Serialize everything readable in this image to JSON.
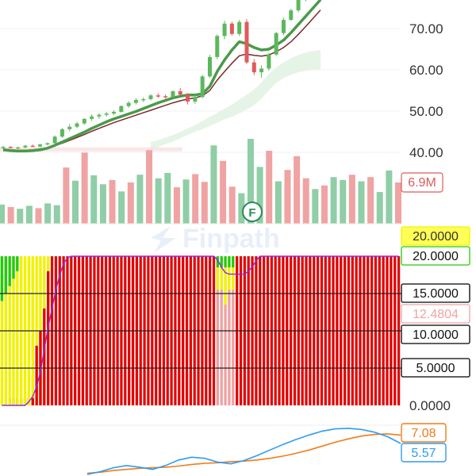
{
  "watermark": "Finpath",
  "corner_marker": "F",
  "colors": {
    "up": "#5cb85c",
    "down": "#e05a5a",
    "vol_up": "#8fcea6",
    "vol_down": "#f0a3a3",
    "cloud": "#e3f3e6",
    "ma_fast": "#4a9a4a",
    "ma_slow": "#7a2a2a",
    "ind_red": "#e30000",
    "ind_yellow": "#f2f200",
    "ind_green": "#22cc00",
    "ind_line": "#8a2be2",
    "macd_blue": "#2e9cf0",
    "macd_orange": "#f07c1a"
  },
  "chart_data": [
    {
      "type": "candlestick",
      "y_ticks": [
        "70.00",
        "60.00",
        "50.00",
        "40.00"
      ],
      "ylim": [
        36,
        77
      ],
      "candles": [
        [
          41.2,
          41.6,
          40.9,
          41.3
        ],
        [
          41.3,
          41.5,
          41.0,
          41.1
        ],
        [
          41.1,
          41.4,
          40.8,
          41.2
        ],
        [
          41.2,
          41.8,
          41.0,
          41.6
        ],
        [
          41.6,
          41.9,
          41.3,
          41.4
        ],
        [
          41.4,
          42.1,
          41.2,
          41.9
        ],
        [
          41.9,
          42.4,
          41.7,
          42.2
        ],
        [
          42.2,
          44.1,
          42.0,
          43.8
        ],
        [
          43.8,
          45.9,
          43.5,
          45.6
        ],
        [
          45.6,
          46.8,
          45.1,
          46.2
        ],
        [
          46.2,
          47.4,
          45.8,
          47.0
        ],
        [
          47.0,
          48.3,
          46.7,
          48.1
        ],
        [
          48.1,
          49.2,
          47.6,
          48.7
        ],
        [
          48.7,
          49.5,
          48.1,
          49.1
        ],
        [
          49.1,
          49.8,
          48.6,
          49.4
        ],
        [
          49.4,
          50.2,
          49.0,
          49.8
        ],
        [
          49.8,
          51.4,
          49.6,
          51.2
        ],
        [
          51.2,
          52.4,
          50.8,
          52.0
        ],
        [
          52.0,
          53.1,
          51.6,
          52.7
        ],
        [
          52.7,
          53.3,
          52.2,
          52.9
        ],
        [
          52.9,
          54.1,
          52.6,
          53.8
        ],
        [
          53.8,
          54.3,
          53.2,
          53.6
        ],
        [
          53.6,
          54.0,
          53.0,
          53.4
        ],
        [
          53.4,
          55.0,
          53.2,
          54.8
        ],
        [
          54.8,
          55.6,
          53.7,
          54.0
        ],
        [
          54.0,
          54.4,
          51.6,
          52.3
        ],
        [
          52.3,
          53.9,
          51.8,
          53.4
        ],
        [
          53.4,
          58.8,
          53.1,
          58.4
        ],
        [
          58.4,
          63.6,
          58.0,
          63.1
        ],
        [
          63.1,
          68.6,
          62.6,
          68.2
        ],
        [
          68.2,
          71.9,
          67.4,
          71.2
        ],
        [
          71.2,
          71.7,
          68.3,
          68.7
        ],
        [
          68.7,
          72.1,
          68.2,
          71.6
        ],
        [
          71.6,
          72.3,
          61.4,
          61.8
        ],
        [
          61.8,
          62.6,
          58.7,
          59.4
        ],
        [
          59.4,
          61.1,
          58.1,
          60.3
        ],
        [
          60.3,
          64.1,
          59.8,
          63.7
        ],
        [
          63.7,
          69.2,
          63.4,
          68.9
        ],
        [
          68.9,
          72.6,
          68.4,
          72.1
        ],
        [
          72.1,
          74.8,
          71.8,
          74.4
        ],
        [
          74.4,
          77.6,
          74.0,
          77.1
        ],
        [
          77.1,
          78.6,
          76.6,
          78.1
        ],
        [
          78.1,
          79.2,
          77.6,
          78.7
        ],
        [
          78.7,
          79.6,
          78.2,
          79.3
        ]
      ],
      "ma_fast": [
        40.6,
        40.4,
        40.3,
        40.3,
        40.4,
        40.6,
        41.0,
        41.7,
        42.5,
        43.3,
        44.1,
        44.9,
        45.8,
        46.6,
        47.4,
        48.1,
        48.7,
        49.3,
        49.9,
        50.6,
        51.3,
        52.0,
        52.6,
        53.2,
        53.6,
        53.9,
        53.9,
        54.2,
        56.0,
        59.6,
        62.4,
        64.8,
        66.8,
        66.3,
        65.4,
        64.8,
        65.0,
        66.0,
        67.2,
        69.0,
        71.0,
        73.0,
        75.0,
        77.0
      ],
      "ma_slow": [
        40.8,
        40.6,
        40.5,
        40.5,
        40.6,
        40.8,
        41.1,
        41.6,
        42.2,
        42.9,
        43.6,
        44.3,
        45.1,
        45.8,
        46.5,
        47.2,
        47.8,
        48.4,
        49.0,
        49.6,
        50.2,
        50.8,
        51.4,
        52.0,
        52.5,
        52.9,
        53.2,
        53.7,
        55.0,
        57.5,
        59.6,
        61.6,
        63.4,
        63.8,
        63.5,
        63.3,
        63.6,
        64.4,
        65.4,
        66.8,
        68.6,
        70.5,
        72.5,
        74.5
      ],
      "cloud_top": [
        null,
        null,
        null,
        null,
        null,
        null,
        null,
        null,
        null,
        null,
        null,
        null,
        null,
        null,
        null,
        null,
        null,
        null,
        null,
        null,
        42.5,
        43.0,
        43.6,
        44.2,
        45.0,
        45.8,
        46.6,
        47.6,
        48.6,
        49.6,
        50.6,
        51.6,
        52.8,
        54.0,
        55.2,
        57.0,
        59.0,
        60.6,
        61.8,
        62.8,
        63.6,
        64.2,
        64.6,
        64.8
      ],
      "cloud_bottom": [
        null,
        null,
        null,
        null,
        null,
        null,
        null,
        null,
        null,
        null,
        null,
        null,
        null,
        null,
        null,
        null,
        null,
        null,
        null,
        null,
        40.5,
        41.2,
        42.0,
        42.6,
        43.4,
        44.2,
        45.0,
        45.6,
        46.4,
        47.2,
        48.0,
        48.6,
        49.4,
        50.4,
        51.4,
        53.0,
        55.0,
        56.8,
        58.0,
        58.8,
        59.4,
        59.8,
        60.0,
        60.2
      ]
    },
    {
      "type": "bar",
      "name": "volume",
      "last_value_label": "6.9M",
      "values": [
        3.2,
        2.8,
        2.5,
        3.0,
        2.6,
        3.4,
        3.1,
        9.4,
        7.2,
        11.9,
        8.1,
        6.6,
        7.3,
        5.4,
        6.9,
        8.2,
        12.3,
        7.6,
        8.5,
        6.1,
        7.4,
        8.3,
        7.0,
        13.1,
        10.5,
        6.2,
        5.1,
        14.2,
        9.5,
        12.2,
        7.1,
        9.0,
        11.3,
        7.6,
        5.8,
        6.4,
        7.8,
        7.3,
        8.2,
        7.1,
        7.8,
        5.3,
        8.9,
        6.9
      ],
      "up": [
        true,
        false,
        true,
        true,
        false,
        true,
        true,
        false,
        true,
        false,
        true,
        true,
        false,
        true,
        false,
        true,
        false,
        true,
        true,
        false,
        true,
        false,
        false,
        true,
        false,
        false,
        true,
        true,
        true,
        false,
        true,
        false,
        false,
        false,
        true,
        false,
        true,
        true,
        false,
        true,
        false,
        true,
        true,
        false
      ]
    },
    {
      "type": "bar",
      "name": "stacked-indicator",
      "y_ticks": [
        "20.0000",
        "15.0000",
        "10.0000",
        "5.0000",
        "0.0000"
      ],
      "ylim": [
        0,
        20
      ],
      "tags": [
        {
          "label": "20.0000",
          "value": 20.2,
          "color": "#f2f200"
        },
        {
          "label": "20.0000",
          "value": 20.0,
          "color": "#22cc00"
        },
        {
          "label": "15.0000",
          "value": 15.0,
          "color": "#000000"
        },
        {
          "label": "12.4804",
          "value": 12.4804,
          "color": "#f0a3a3"
        },
        {
          "label": "10.0000",
          "value": 10.0,
          "color": "#000000"
        },
        {
          "label": "5.0000",
          "value": 5.0,
          "color": "#000000"
        }
      ],
      "lines": [
        15,
        10,
        5
      ],
      "green": [
        6,
        5,
        4,
        3,
        2,
        0,
        0,
        0,
        0,
        0,
        0,
        0,
        0,
        0,
        0,
        0,
        0,
        0,
        0,
        0,
        0,
        0,
        0,
        0,
        0,
        0,
        0,
        0,
        0,
        0,
        0,
        0,
        0,
        0,
        0,
        0,
        0,
        0,
        0,
        0,
        0,
        0,
        0,
        0,
        0,
        0,
        0,
        0,
        0,
        0,
        0,
        0,
        0,
        0,
        0,
        0,
        0,
        0,
        0,
        0,
        0,
        0,
        0,
        0,
        0,
        0,
        0,
        0,
        0,
        0,
        0,
        0,
        0,
        0,
        0,
        0,
        0,
        0,
        0,
        0,
        0,
        0,
        0,
        0,
        0,
        0,
        0,
        0,
        0,
        0,
        0,
        0,
        0,
        0,
        0,
        0,
        0,
        0,
        0,
        0,
        0,
        0,
        0,
        0
      ],
      "yellow": [
        14,
        15,
        15,
        16,
        17,
        19,
        19,
        19,
        19,
        12,
        10,
        7,
        2,
        0,
        0,
        0,
        0,
        0,
        0,
        0,
        0,
        0,
        0,
        0,
        0,
        0,
        0,
        0,
        0,
        0,
        0,
        0,
        0,
        0,
        0,
        0,
        0,
        0,
        0,
        0,
        0,
        0,
        0,
        0,
        0,
        0,
        0,
        0,
        0,
        0,
        0,
        0,
        0,
        0,
        0,
        0,
        0,
        0,
        0,
        0,
        0,
        0,
        0,
        0,
        0,
        0,
        0,
        0,
        0,
        0,
        0,
        0,
        0,
        0,
        0,
        0,
        0,
        0,
        0,
        0,
        0,
        0,
        0,
        0,
        0,
        0,
        0,
        0,
        0,
        0,
        0,
        0,
        0,
        0,
        0,
        0,
        0,
        0,
        0,
        0,
        0,
        0,
        0,
        0
      ],
      "bar_top_color": [
        "g",
        "g",
        "g",
        "g",
        "g",
        "y",
        "y",
        "y",
        "y",
        "y",
        "y",
        "y",
        "y",
        "r",
        "r",
        "r",
        "r",
        "r",
        "r",
        "r",
        "r",
        "r",
        "r",
        "r",
        "r",
        "r",
        "r",
        "r",
        "r",
        "r",
        "r",
        "r",
        "r",
        "r",
        "r",
        "r",
        "r",
        "r",
        "r",
        "r",
        "r",
        "r",
        "r",
        "r",
        "r",
        "r",
        "r",
        "r",
        "r",
        "r",
        "r",
        "r",
        "r",
        "r",
        "r",
        "r",
        "r",
        "r",
        "r",
        "r",
        "r",
        "r",
        "r",
        "r",
        "r",
        "r",
        "r",
        "r",
        "r",
        "r",
        "r",
        "r",
        "r",
        "r",
        "r",
        "r",
        "r",
        "r",
        "r",
        "r",
        "r",
        "r",
        "r",
        "r",
        "r",
        "r",
        "r",
        "r",
        "r",
        "r",
        "r",
        "r",
        "r",
        "r",
        "r",
        "r",
        "r",
        "r",
        "r",
        "r",
        "r",
        "r",
        "r",
        "r"
      ],
      "line": [
        0,
        0,
        0,
        0,
        0,
        0,
        0,
        0.5,
        1.2,
        2.5,
        4.5,
        7.5,
        10.5,
        13.0,
        15.5,
        17.5,
        19.0,
        19.8,
        20,
        20,
        20,
        20,
        20,
        20,
        20,
        20,
        20,
        20,
        20,
        20,
        20,
        20,
        20,
        20,
        20,
        20,
        20,
        20,
        20,
        20,
        20,
        20,
        20,
        20,
        20,
        20,
        20,
        20,
        20,
        20,
        20,
        20,
        20,
        20,
        20,
        20,
        19.5,
        18.5,
        17.8,
        17.6,
        17.6,
        17.6,
        17.6,
        17.6,
        18.0,
        18.6,
        19.4,
        20,
        20,
        20,
        20,
        20,
        20,
        20,
        20,
        20,
        20,
        20,
        20,
        20,
        20,
        20,
        20,
        20,
        20,
        20,
        20,
        20,
        20,
        20,
        20,
        20,
        20,
        20,
        20,
        20,
        20,
        20,
        20,
        20,
        20,
        20,
        20,
        20
      ]
    },
    {
      "type": "line",
      "name": "macd",
      "series": [
        {
          "label": "7.08",
          "color": "#f07c1a",
          "values": [
            0.2,
            0.4,
            0.7,
            0.9,
            1.1,
            1.2,
            1.3,
            1.5,
            1.8,
            2.0,
            2.1,
            2.3,
            2.4,
            2.6,
            2.9,
            3.3,
            3.8,
            4.4,
            5.1,
            5.8,
            6.4,
            6.9,
            7.2,
            7.3,
            7.08
          ]
        },
        {
          "label": "5.57",
          "color": "#2e9cf0",
          "values": [
            0.0,
            0.5,
            1.2,
            1.6,
            1.3,
            0.9,
            1.6,
            2.6,
            3.1,
            2.9,
            2.2,
            1.9,
            2.5,
            3.4,
            4.4,
            5.4,
            6.3,
            7.1,
            7.8,
            8.2,
            8.3,
            8.1,
            7.6,
            6.8,
            5.57
          ]
        }
      ],
      "ylim": [
        0,
        9
      ]
    }
  ]
}
